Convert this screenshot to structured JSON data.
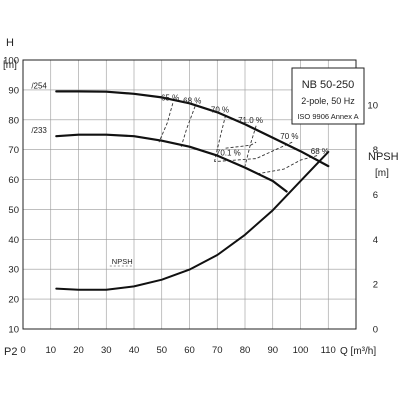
{
  "chart_data": {
    "type": "line",
    "title_box": {
      "line1": "NB 50-250",
      "line2": "2-pole, 50 Hz",
      "line3": "ISO 9906 Annex A"
    },
    "left_axis": {
      "label_top": "H",
      "unit": "[m]",
      "ylim": [
        10,
        100
      ],
      "ticks": [
        10,
        20,
        30,
        40,
        50,
        60,
        70,
        80,
        90,
        100
      ]
    },
    "right_axis": {
      "label_top": "NPSH",
      "unit": "[m]",
      "ylim": [
        0,
        12
      ],
      "ticks": [
        0,
        2,
        4,
        6,
        8,
        10
      ]
    },
    "x_axis": {
      "label": "Q [m³/h]",
      "xlim": [
        0,
        120
      ],
      "ticks": [
        0,
        10,
        20,
        30,
        40,
        50,
        60,
        70,
        80,
        90,
        100,
        110
      ]
    },
    "bottom_left_label": "P2",
    "grid": true,
    "head_curves": [
      {
        "name": "/254",
        "label_x": 3,
        "label_y": 90.5,
        "points": [
          [
            12,
            89.5
          ],
          [
            20,
            89.5
          ],
          [
            30,
            89.4
          ],
          [
            40,
            88.7
          ],
          [
            50,
            87.5
          ],
          [
            60,
            85.5
          ],
          [
            70,
            82.5
          ],
          [
            80,
            78.5
          ],
          [
            90,
            74
          ],
          [
            100,
            69.5
          ],
          [
            110,
            64.5
          ]
        ]
      },
      {
        "name": "/233",
        "label_x": 3,
        "label_y": 75.5,
        "points": [
          [
            12,
            74.5
          ],
          [
            20,
            75
          ],
          [
            30,
            75
          ],
          [
            40,
            74.5
          ],
          [
            50,
            73
          ],
          [
            60,
            71
          ],
          [
            70,
            68
          ],
          [
            80,
            64
          ],
          [
            90,
            59.5
          ],
          [
            95,
            56
          ]
        ]
      }
    ],
    "efficiency_labels": [
      {
        "text": "65 %",
        "x": 53,
        "y": 86.5
      },
      {
        "text": "68 %",
        "x": 61,
        "y": 85.5
      },
      {
        "text": "70 %",
        "x": 71,
        "y": 82.5
      },
      {
        "text": "71.0 %",
        "x": 82,
        "y": 79
      },
      {
        "text": "70 %",
        "x": 96,
        "y": 73.5
      },
      {
        "text": "68 %",
        "x": 107,
        "y": 68.5
      },
      {
        "text": "70.1 %",
        "x": 74,
        "y": 68
      }
    ],
    "efficiency_lines": [
      [
        [
          54,
          85.5
        ],
        [
          52,
          79
        ],
        [
          49,
          72.5
        ]
      ],
      [
        [
          62,
          84.5
        ],
        [
          59,
          77
        ],
        [
          57,
          71
        ]
      ],
      [
        [
          73,
          81.5
        ],
        [
          71,
          74
        ],
        [
          69,
          66
        ]
      ],
      [
        [
          84,
          78
        ],
        [
          82,
          72
        ],
        [
          80,
          64.5
        ]
      ],
      [
        [
          97,
          72.5
        ],
        [
          91,
          70
        ],
        [
          84,
          67
        ],
        [
          69,
          66
        ]
      ],
      [
        [
          106,
          68
        ],
        [
          100,
          66.5
        ],
        [
          94,
          63.5
        ],
        [
          85,
          62
        ]
      ],
      [
        [
          73,
          70.5
        ],
        [
          82,
          71.5
        ],
        [
          84,
          72.5
        ]
      ]
    ],
    "npsh_curve": {
      "name": "NPSH",
      "label_x": 32,
      "label_y": 2.9,
      "points": [
        [
          12,
          1.8
        ],
        [
          20,
          1.75
        ],
        [
          30,
          1.75
        ],
        [
          40,
          1.9
        ],
        [
          50,
          2.2
        ],
        [
          60,
          2.65
        ],
        [
          70,
          3.3
        ],
        [
          80,
          4.2
        ],
        [
          90,
          5.3
        ],
        [
          100,
          6.6
        ],
        [
          110,
          7.9
        ]
      ]
    }
  }
}
